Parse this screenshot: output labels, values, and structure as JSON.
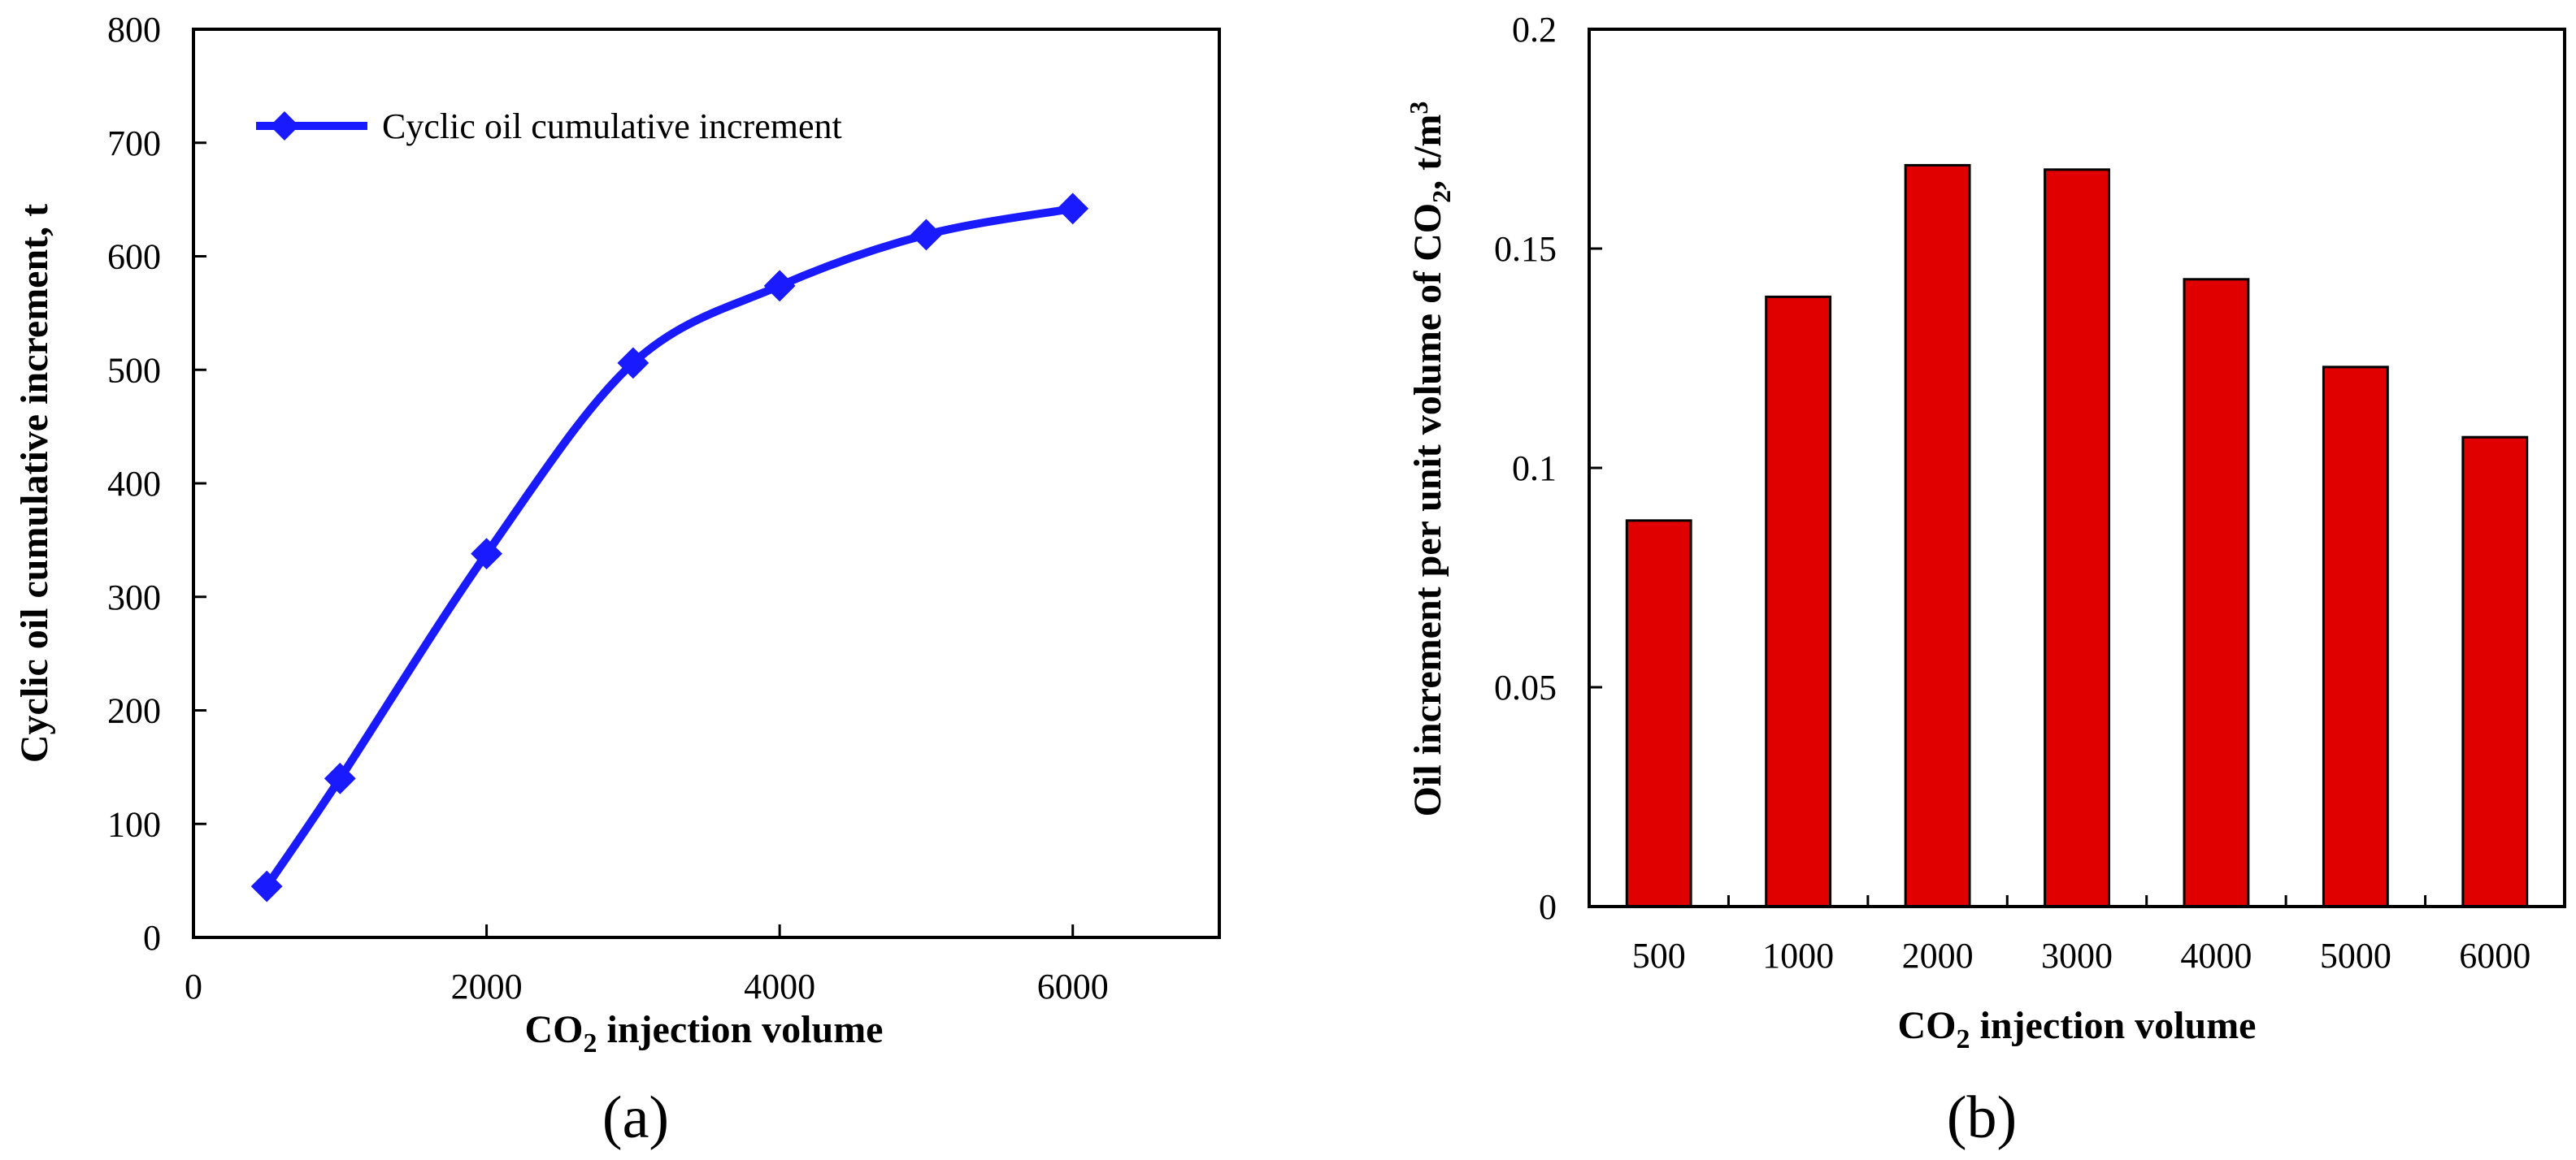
{
  "chart_data": [
    {
      "type": "line",
      "panel_label": "(a)",
      "x": [
        500,
        1000,
        2000,
        3000,
        4000,
        5000,
        6000
      ],
      "series": [
        {
          "name": "Cyclic oil cumulative increment",
          "values": [
            45,
            140,
            338,
            506,
            574,
            619,
            642
          ],
          "color": "#1a1aff"
        }
      ],
      "xlabel": {
        "pre": "CO",
        "sub": "2",
        "post": " injection volume"
      },
      "ylabel": "Cyclic oil cumulative increment, t",
      "xlim": [
        0,
        7000
      ],
      "ylim": [
        0,
        800
      ],
      "xticks": [
        0,
        2000,
        4000,
        6000
      ],
      "yticks": [
        0,
        100,
        200,
        300,
        400,
        500,
        600,
        700,
        800
      ],
      "legend_position": "top-left",
      "marker": "diamond",
      "grid": false
    },
    {
      "type": "bar",
      "panel_label": "(b)",
      "categories": [
        "500",
        "1000",
        "2000",
        "3000",
        "4000",
        "5000",
        "6000"
      ],
      "values": [
        0.088,
        0.139,
        0.169,
        0.168,
        0.143,
        0.123,
        0.107
      ],
      "bar_color": "#e00000",
      "xlabel": {
        "pre": "CO",
        "sub": "2",
        "post": " injection volume"
      },
      "ylabel": {
        "pre": "Oil increment per unit volume of  CO",
        "sub": "2",
        "post": ", t/m",
        "sup": "3"
      },
      "ylim": [
        0,
        0.2
      ],
      "yticks": [
        0,
        0.05,
        0.1,
        0.15,
        0.2
      ],
      "ytick_labels": [
        "0",
        "0.05",
        "0.1",
        "0.15",
        "0.2"
      ],
      "grid": false
    }
  ]
}
